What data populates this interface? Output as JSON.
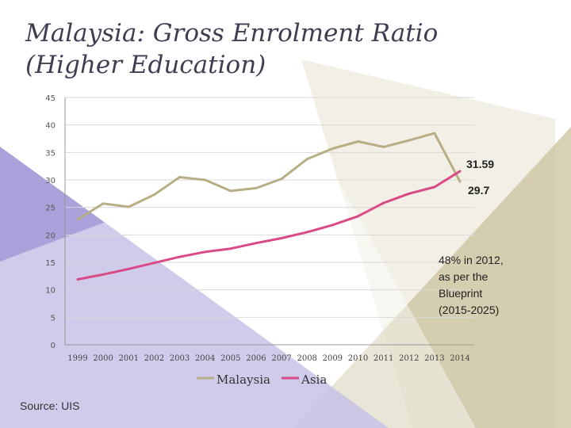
{
  "title": "Malaysia: Gross Enrolment Ratio (Higher Education)",
  "source": "Source: UIS",
  "colors": {
    "malaysia": "#b8ae86",
    "asia": "#d94a86",
    "decor_purple": "#9a91d2",
    "decor_tan": "#c9c19d"
  },
  "chart_data": {
    "type": "line",
    "x": [
      "1999",
      "2000",
      "2001",
      "2002",
      "2003",
      "2004",
      "2005",
      "2006",
      "2007",
      "2008",
      "2009",
      "2010",
      "2011",
      "2012",
      "2013",
      "2014"
    ],
    "ylim": [
      0,
      45
    ],
    "yticks": [
      0,
      5,
      10,
      15,
      20,
      25,
      30,
      35,
      40,
      45
    ],
    "grid": true,
    "legend": "bottom",
    "series": [
      {
        "name": "Malaysia",
        "color": "#b8ae86",
        "values": [
          22.8,
          25.7,
          25.1,
          27.3,
          30.5,
          30.0,
          28.0,
          28.5,
          30.2,
          33.8,
          35.7,
          37.0,
          36.0,
          37.2,
          38.5,
          29.7
        ]
      },
      {
        "name": "Asia",
        "color": "#d94a86",
        "values": [
          11.9,
          12.8,
          13.8,
          14.9,
          16.0,
          16.9,
          17.5,
          18.5,
          19.4,
          20.5,
          21.8,
          23.4,
          25.8,
          27.5,
          28.7,
          31.59
        ]
      }
    ],
    "annotations": {
      "asia_end": "31.59",
      "malaysia_end": "29.7",
      "note": [
        "48% in 2012,",
        "as per the",
        "Blueprint",
        "(2015-2025)"
      ]
    }
  }
}
